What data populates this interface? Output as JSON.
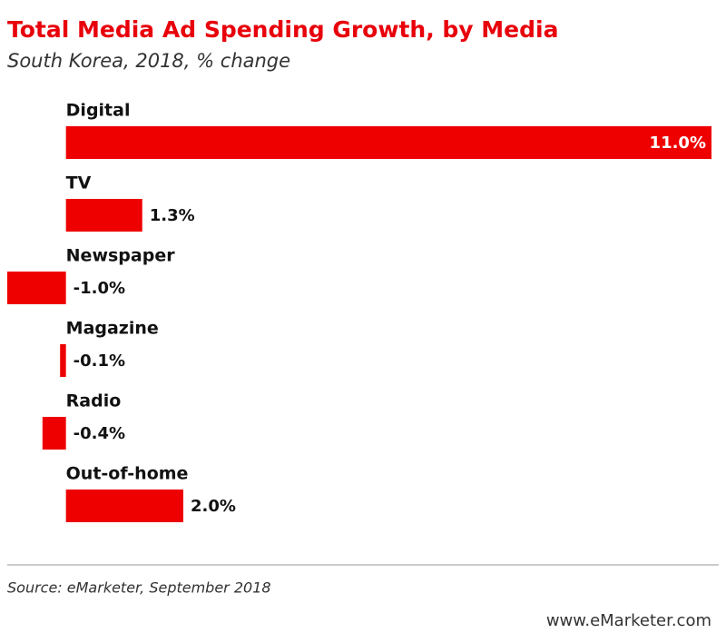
{
  "chart_data": {
    "type": "bar",
    "orientation": "horizontal",
    "title": "Total Media Ad Spending Growth, by Media",
    "subtitle": "South Korea, 2018, % change",
    "categories": [
      "Digital",
      "TV",
      "Newspaper",
      "Magazine",
      "Radio",
      "Out-of-home"
    ],
    "values": [
      11.0,
      1.3,
      -1.0,
      -0.1,
      -0.4,
      2.0
    ],
    "value_labels": [
      "11.0%",
      "1.3%",
      "-1.0%",
      "-0.1%",
      "-0.4%",
      "2.0%"
    ],
    "color": "#ee0000",
    "source": "Source: eMarketer, September 2018",
    "brand": "www.eMarketer.com"
  }
}
